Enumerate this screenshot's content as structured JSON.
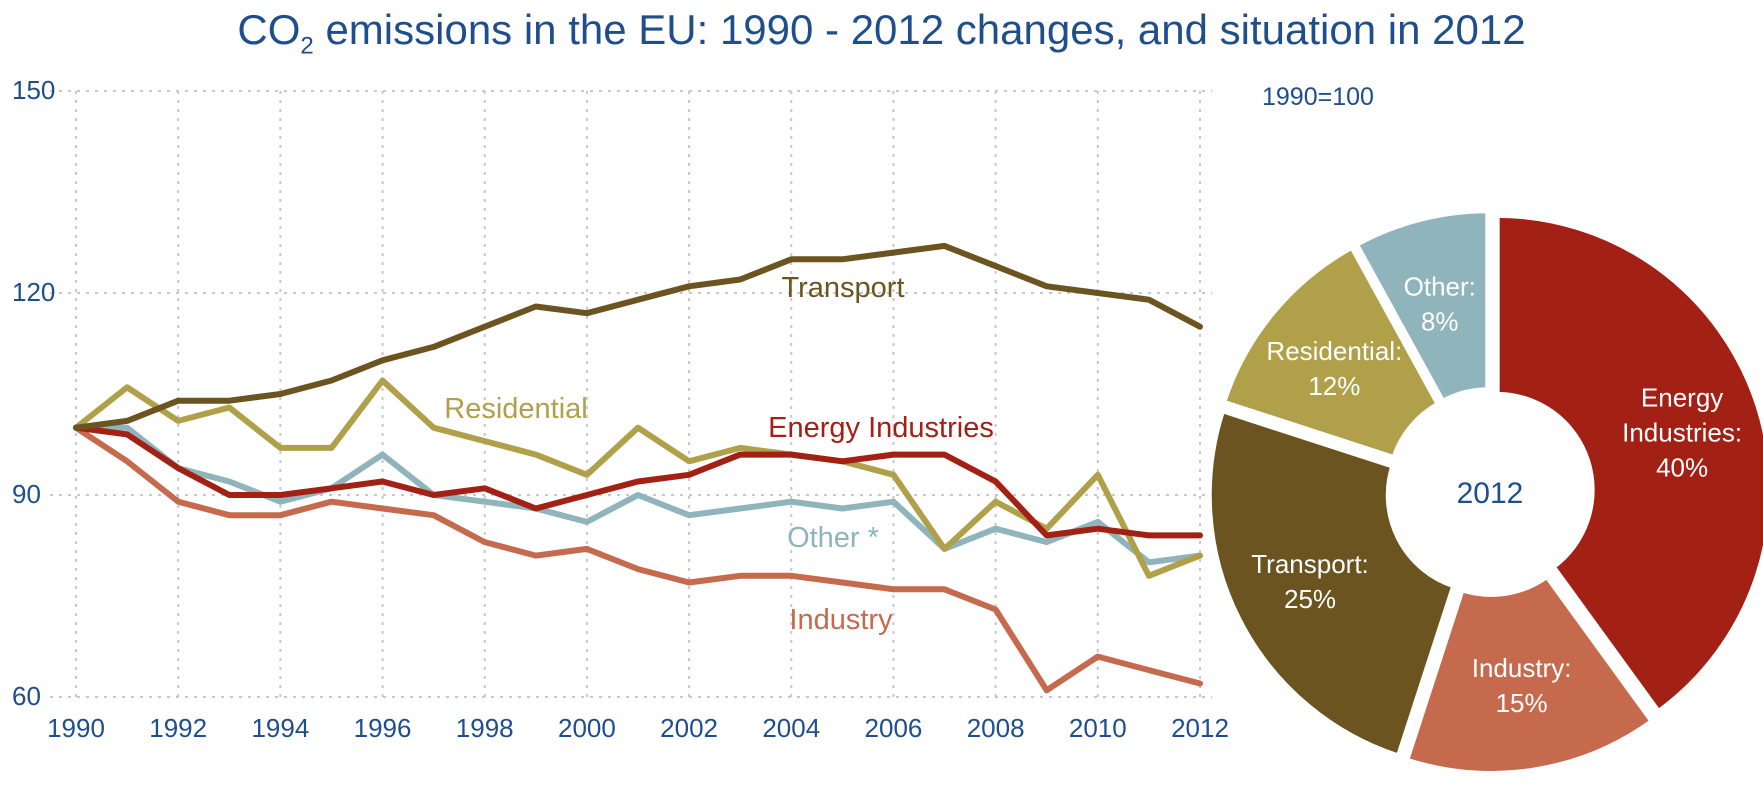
{
  "title": {
    "prefix": "CO",
    "subscript": "2",
    "suffix": " emissions in the EU: 1990 - 2012 changes, and situation in 2012"
  },
  "chart_data": [
    {
      "type": "line",
      "x": [
        1990,
        1991,
        1992,
        1993,
        1994,
        1995,
        1996,
        1997,
        1998,
        1999,
        2000,
        2001,
        2002,
        2003,
        2004,
        2005,
        2006,
        2007,
        2008,
        2009,
        2010,
        2011,
        2012
      ],
      "xticks": [
        "1990",
        "1992",
        "1994",
        "1996",
        "1998",
        "2000",
        "2002",
        "2004",
        "2006",
        "2008",
        "2010",
        "2012"
      ],
      "yticks": [
        "60",
        "90",
        "120",
        "150"
      ],
      "ylim": [
        60,
        150
      ],
      "xlim": [
        1990,
        2012
      ],
      "grid": true,
      "index_note": "1990=100",
      "series": [
        {
          "name": "Transport",
          "color": "#6b5420",
          "values": [
            100,
            101,
            104,
            104,
            105,
            107,
            110,
            112,
            115,
            118,
            117,
            119,
            121,
            122,
            125,
            125,
            126,
            127,
            124,
            121,
            120,
            119,
            115
          ]
        },
        {
          "name": "Residential",
          "color": "#b0a04a",
          "values": [
            100,
            106,
            101,
            103,
            97,
            97,
            107,
            100,
            98,
            96,
            93,
            100,
            95,
            97,
            96,
            95,
            93,
            82,
            89,
            85,
            93,
            78,
            81
          ]
        },
        {
          "name": "Energy Industries",
          "color": "#a32015",
          "values": [
            100,
            99,
            94,
            90,
            90,
            91,
            92,
            90,
            91,
            88,
            90,
            92,
            93,
            96,
            96,
            95,
            96,
            96,
            92,
            84,
            85,
            84,
            84
          ]
        },
        {
          "name": "Other *",
          "color": "#8fb4bb",
          "values": [
            100,
            100,
            94,
            92,
            89,
            91,
            96,
            90,
            89,
            88,
            86,
            90,
            87,
            88,
            89,
            88,
            89,
            82,
            85,
            83,
            86,
            80,
            81
          ]
        },
        {
          "name": "Industry",
          "color": "#c66a4e",
          "values": [
            100,
            95,
            89,
            87,
            87,
            89,
            88,
            87,
            83,
            81,
            82,
            79,
            77,
            78,
            78,
            77,
            76,
            76,
            73,
            61,
            66,
            64,
            62
          ]
        }
      ]
    },
    {
      "type": "pie",
      "center_label": "2012",
      "slices": [
        {
          "name": "Energy Industries:",
          "label_lines": [
            "Energy",
            "Industries:"
          ],
          "pct": "40%",
          "value": 40,
          "color": "#a32015"
        },
        {
          "name": "Industry:",
          "label_lines": [
            "Industry:"
          ],
          "pct": "15%",
          "value": 15,
          "color": "#c66a4e"
        },
        {
          "name": "Transport:",
          "label_lines": [
            "Transport:"
          ],
          "pct": "25%",
          "value": 25,
          "color": "#6b5420"
        },
        {
          "name": "Residential:",
          "label_lines": [
            "Residential:"
          ],
          "pct": "12%",
          "value": 12,
          "color": "#b0a04a"
        },
        {
          "name": "Other:",
          "label_lines": [
            "Other:"
          ],
          "pct": "8%",
          "value": 8,
          "color": "#8fb4bb"
        }
      ]
    }
  ]
}
